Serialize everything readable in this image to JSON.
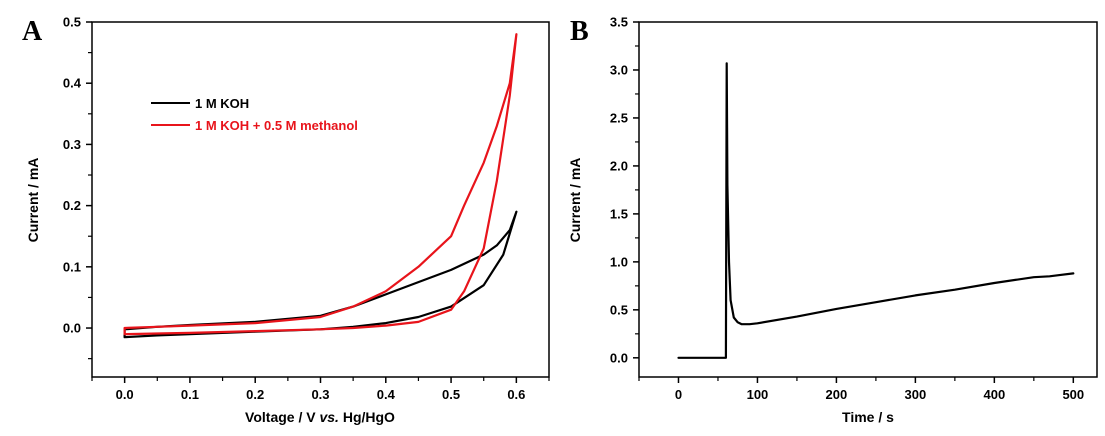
{
  "chart_data": [
    {
      "panel_label": "A",
      "type": "line",
      "xlabel_parts": [
        "Voltage / V ",
        "vs.",
        " Hg/HgO"
      ],
      "ylabel": "Current / mA",
      "xlim": [
        -0.05,
        0.65
      ],
      "ylim": [
        -0.08,
        0.5
      ],
      "xticks": [
        "0.0",
        "0.1",
        "0.2",
        "0.3",
        "0.4",
        "0.5",
        "0.6"
      ],
      "yticks": [
        "0.0",
        "0.1",
        "0.2",
        "0.3",
        "0.4",
        "0.5"
      ],
      "legend_position": "upper-left",
      "series": [
        {
          "name": "1 M KOH",
          "color": "#000000",
          "x": [
            0.0,
            0.05,
            0.1,
            0.2,
            0.3,
            0.35,
            0.4,
            0.45,
            0.5,
            0.55,
            0.58,
            0.6,
            0.59,
            0.57,
            0.55,
            0.5,
            0.45,
            0.4,
            0.35,
            0.3,
            0.2,
            0.1,
            0.05,
            0.0,
            0.0
          ],
          "y": [
            -0.015,
            -0.012,
            -0.01,
            -0.006,
            -0.002,
            0.002,
            0.008,
            0.018,
            0.035,
            0.07,
            0.12,
            0.19,
            0.16,
            0.135,
            0.12,
            0.095,
            0.075,
            0.055,
            0.035,
            0.02,
            0.01,
            0.005,
            0.002,
            -0.002,
            -0.015
          ]
        },
        {
          "name": "1 M KOH + 0.5 M methanol",
          "color": "#e8141b",
          "x": [
            0.0,
            0.05,
            0.1,
            0.2,
            0.3,
            0.35,
            0.4,
            0.45,
            0.5,
            0.52,
            0.55,
            0.57,
            0.59,
            0.6,
            0.59,
            0.57,
            0.55,
            0.52,
            0.5,
            0.45,
            0.4,
            0.35,
            0.3,
            0.2,
            0.1,
            0.05,
            0.0,
            0.0
          ],
          "y": [
            -0.01,
            -0.009,
            -0.008,
            -0.005,
            -0.002,
            0.0,
            0.004,
            0.01,
            0.03,
            0.06,
            0.13,
            0.24,
            0.38,
            0.48,
            0.4,
            0.33,
            0.27,
            0.2,
            0.15,
            0.1,
            0.06,
            0.035,
            0.018,
            0.008,
            0.004,
            0.002,
            0.0,
            -0.01
          ]
        }
      ]
    },
    {
      "panel_label": "B",
      "type": "line",
      "xlabel": "Time / s",
      "ylabel": "Current / mA",
      "xlim": [
        -50,
        530
      ],
      "ylim": [
        -0.2,
        3.5
      ],
      "xticks": [
        "0",
        "100",
        "200",
        "300",
        "400",
        "500"
      ],
      "yticks": [
        "0.0",
        "0.5",
        "1.0",
        "1.5",
        "2.0",
        "2.5",
        "3.0",
        "3.5"
      ],
      "series": [
        {
          "color": "#000000",
          "x": [
            0,
            60,
            60,
            61,
            62,
            64,
            66,
            70,
            75,
            80,
            90,
            100,
            150,
            200,
            250,
            300,
            350,
            400,
            450,
            470,
            480,
            500
          ],
          "y": [
            0.0,
            0.0,
            0.0,
            3.07,
            1.8,
            1.0,
            0.6,
            0.42,
            0.37,
            0.35,
            0.35,
            0.36,
            0.43,
            0.51,
            0.58,
            0.65,
            0.71,
            0.78,
            0.84,
            0.85,
            0.86,
            0.88
          ]
        }
      ]
    }
  ]
}
